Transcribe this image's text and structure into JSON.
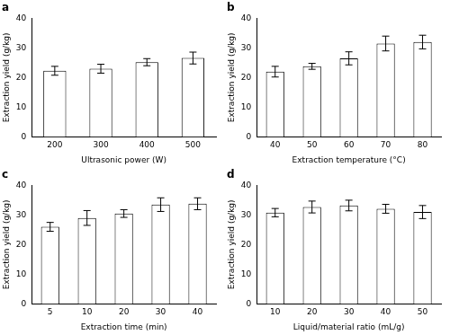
{
  "chart_data": [
    {
      "type": "bar",
      "title": "a",
      "x_label": "Ultrasonic power (W)",
      "y_label": "Extraction yield (g/kg)",
      "categories": [
        "200",
        "300",
        "400",
        "500"
      ],
      "values": [
        22.3,
        23.0,
        25.2,
        26.6
      ],
      "errors": [
        1.5,
        1.5,
        1.2,
        2.0
      ],
      "color": "#ffffff",
      "ylim": [
        0,
        40
      ],
      "yticks": [
        0,
        10,
        20,
        30,
        40
      ],
      "grid": false
    },
    {
      "type": "bar",
      "title": "b",
      "x_label": "Extraction temperature (°C)",
      "y_label": "Extraction yield (g/kg)",
      "categories": [
        "40",
        "50",
        "60",
        "70",
        "80"
      ],
      "values": [
        22.0,
        23.8,
        26.5,
        31.5,
        32.0
      ],
      "errors": [
        1.8,
        1.0,
        2.2,
        2.5,
        2.3
      ],
      "color": "#ffffff",
      "ylim": [
        0,
        40
      ],
      "yticks": [
        0,
        10,
        20,
        30,
        40
      ],
      "grid": false
    },
    {
      "type": "bar",
      "title": "c",
      "x_label": "Extraction time (min)",
      "y_label": "Extraction yield (g/kg)",
      "categories": [
        "5",
        "10",
        "20",
        "30",
        "40"
      ],
      "values": [
        26.0,
        29.0,
        30.5,
        33.5,
        33.8
      ],
      "errors": [
        1.5,
        2.5,
        1.3,
        2.3,
        2.0
      ],
      "color": "#ffffff",
      "ylim": [
        0,
        40
      ],
      "yticks": [
        0,
        10,
        20,
        30,
        40
      ],
      "grid": false
    },
    {
      "type": "bar",
      "title": "d",
      "x_label": "Liquid/material ratio (mL/g)",
      "y_label": "Extraction yield (g/kg)",
      "categories": [
        "10",
        "20",
        "30",
        "40",
        "50"
      ],
      "values": [
        30.8,
        32.7,
        33.2,
        32.1,
        31.0
      ],
      "errors": [
        1.4,
        2.0,
        1.8,
        1.5,
        2.2
      ],
      "color": "#ffffff",
      "ylim": [
        0,
        40
      ],
      "yticks": [
        0,
        10,
        20,
        30,
        40
      ],
      "grid": false
    }
  ]
}
